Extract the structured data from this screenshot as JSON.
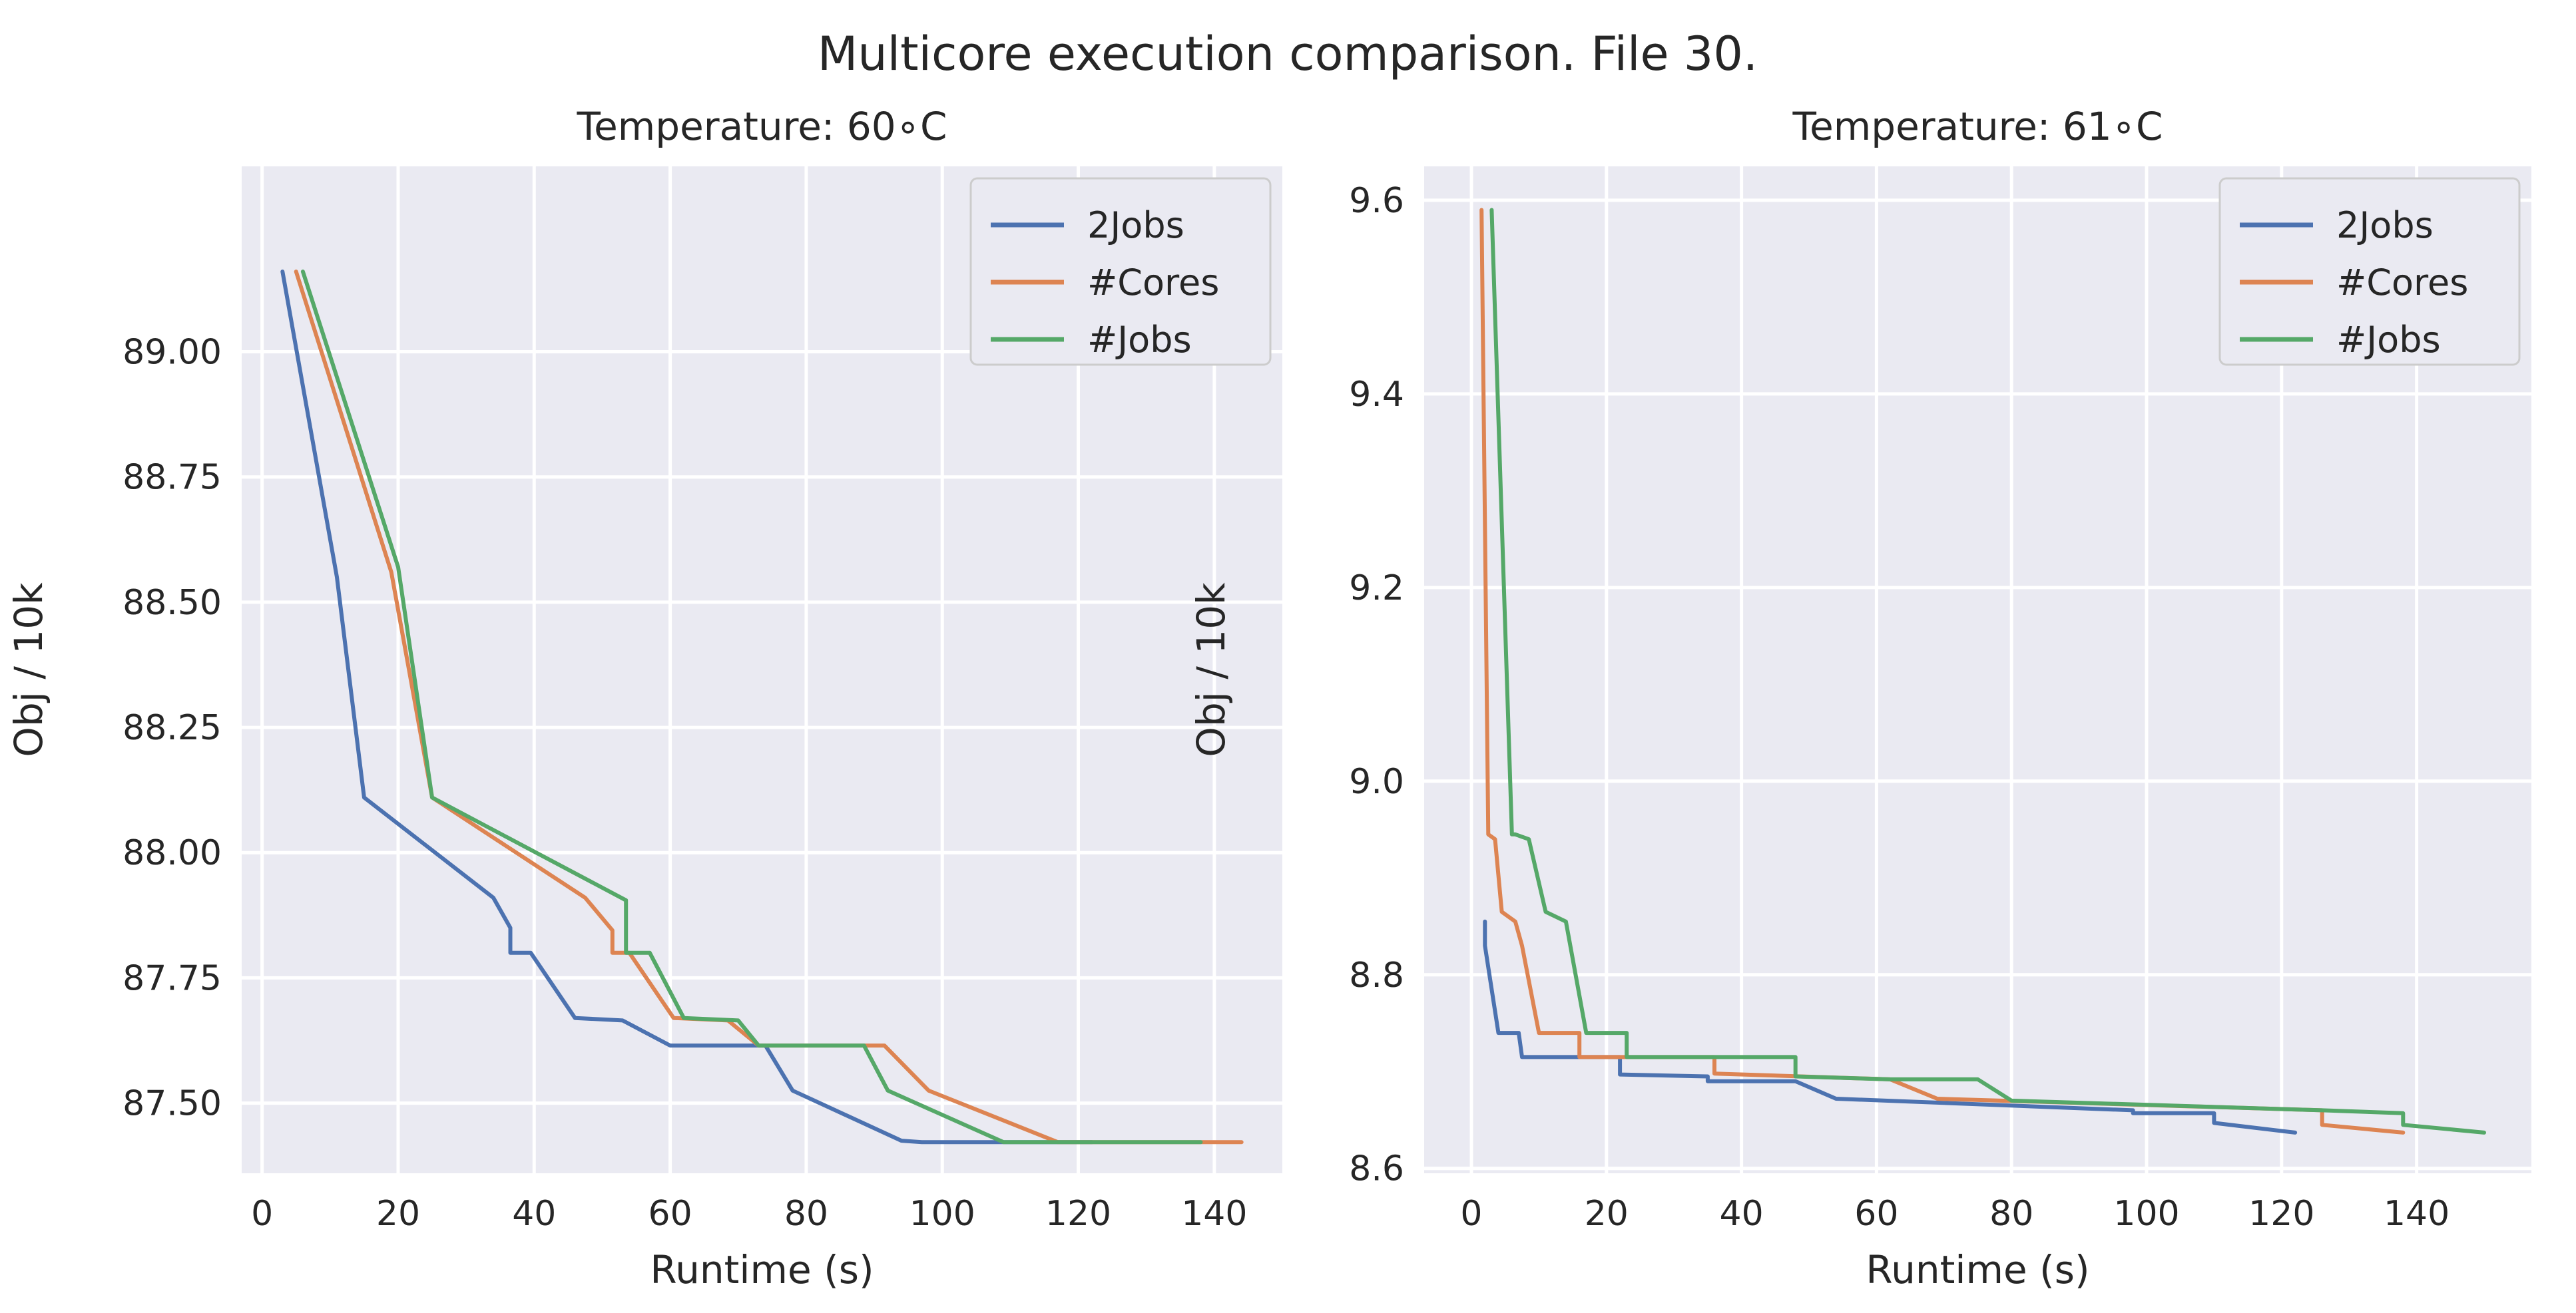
{
  "figure_title": "Multicore execution comparison. File 30.",
  "colors": {
    "2Jobs": "#4c72b0",
    "#Cores": "#dd8452",
    "#Jobs": "#55a868"
  },
  "chart_data": [
    {
      "type": "line",
      "title": "Temperature: 60$^\\circ$C",
      "title_text": "Temperature: 60∘C",
      "xlabel": "Runtime (s)",
      "ylabel": "Obj / 10k",
      "xlim": [
        -3,
        150
      ],
      "ylim": [
        87.36,
        89.37
      ],
      "xticks": [
        0,
        20,
        40,
        60,
        80,
        100,
        120,
        140
      ],
      "xtick_labels": [
        "0",
        "20",
        "40",
        "60",
        "80",
        "100",
        "120",
        "140"
      ],
      "yticks": [
        87.5,
        87.75,
        88.0,
        88.25,
        88.5,
        88.75,
        89.0
      ],
      "ytick_labels": [
        "87.50",
        "87.75",
        "88.00",
        "88.25",
        "88.50",
        "88.75",
        "89.00"
      ],
      "grid": true,
      "legend": "top-right",
      "series": [
        {
          "name": "2Jobs",
          "x": [
            3,
            11,
            15,
            34,
            36.5,
            36.5,
            39.5,
            46,
            53,
            60,
            74,
            78,
            94,
            97,
            122
          ],
          "y": [
            89.16,
            88.55,
            88.11,
            87.91,
            87.85,
            87.8,
            87.8,
            87.67,
            87.665,
            87.615,
            87.615,
            87.525,
            87.425,
            87.422,
            87.422
          ]
        },
        {
          "name": "#Cores",
          "x": [
            5,
            19,
            25,
            47.5,
            51.5,
            51.5,
            54,
            60.5,
            68.5,
            73,
            91.5,
            98,
            117,
            144
          ],
          "y": [
            89.16,
            88.56,
            88.11,
            87.91,
            87.845,
            87.8,
            87.8,
            87.67,
            87.665,
            87.615,
            87.615,
            87.525,
            87.422,
            87.422
          ]
        },
        {
          "name": "#Jobs",
          "x": [
            6,
            20,
            25,
            53.5,
            53.5,
            57,
            62,
            70,
            73,
            88.5,
            92,
            109,
            138
          ],
          "y": [
            89.16,
            88.57,
            88.11,
            87.905,
            87.8,
            87.8,
            87.67,
            87.665,
            87.615,
            87.615,
            87.525,
            87.422,
            87.422
          ]
        }
      ]
    },
    {
      "type": "line",
      "title": "Temperature: 61$^\\circ$C",
      "title_text": "Temperature: 61∘C",
      "xlabel": "Runtime (s)",
      "ylabel": "Obj / 10k",
      "xlim": [
        -7,
        157
      ],
      "ylim": [
        8.595,
        9.635
      ],
      "xticks": [
        0,
        20,
        40,
        60,
        80,
        100,
        120,
        140
      ],
      "xtick_labels": [
        "0",
        "20",
        "40",
        "60",
        "80",
        "100",
        "120",
        "140"
      ],
      "yticks": [
        8.6,
        8.8,
        9.0,
        9.2,
        9.4,
        9.6
      ],
      "ytick_labels": [
        "8.6",
        "8.8",
        "9.0",
        "9.2",
        "9.4",
        "9.6"
      ],
      "grid": true,
      "legend": "top-right",
      "series": [
        {
          "name": "2Jobs",
          "x": [
            2,
            2,
            4,
            7,
            7.5,
            22,
            22,
            35,
            35,
            48,
            54,
            98,
            98,
            110,
            110,
            122
          ],
          "y": [
            8.855,
            8.83,
            8.74,
            8.74,
            8.715,
            8.715,
            8.697,
            8.695,
            8.69,
            8.69,
            8.672,
            8.66,
            8.657,
            8.657,
            8.647,
            8.637
          ]
        },
        {
          "name": "#Cores",
          "x": [
            1.5,
            2.5,
            3.5,
            4.5,
            6.5,
            7.5,
            10,
            16,
            16,
            36,
            36,
            62,
            69,
            126,
            126,
            138
          ],
          "y": [
            9.59,
            8.945,
            8.94,
            8.865,
            8.855,
            8.83,
            8.74,
            8.74,
            8.715,
            8.715,
            8.698,
            8.692,
            8.672,
            8.66,
            8.645,
            8.637
          ]
        },
        {
          "name": "#Jobs",
          "x": [
            3,
            6,
            6.5,
            8.5,
            11,
            14,
            17,
            23,
            23,
            48,
            48,
            62,
            75,
            80,
            126,
            138,
            138,
            150
          ],
          "y": [
            9.59,
            8.945,
            8.945,
            8.94,
            8.865,
            8.855,
            8.74,
            8.74,
            8.715,
            8.715,
            8.695,
            8.692,
            8.692,
            8.67,
            8.66,
            8.657,
            8.645,
            8.637
          ]
        }
      ]
    }
  ]
}
